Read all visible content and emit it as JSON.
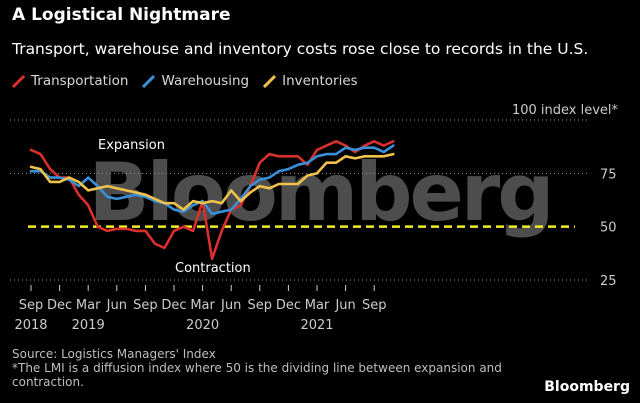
{
  "header": {
    "title": "A Logistical Nightmare",
    "subtitle": "Transport, warehouse and inventory costs rose close to records in the U.S."
  },
  "legend": [
    {
      "label": "Transportation",
      "color": "#d9302c"
    },
    {
      "label": "Warehousing",
      "color": "#3a8fd9"
    },
    {
      "label": "Inventories",
      "color": "#f0c24a"
    }
  ],
  "watermark": "Bloomberg",
  "footer": {
    "source": "Source: Logistics Managers' Index",
    "note": "*The LMI is a diffusion index where 50 is the dividing line between expansion and contraction.",
    "brand": "Bloomberg"
  },
  "chart_data": {
    "type": "line",
    "y_unit_label": "100 index level*",
    "ylim": [
      25,
      100
    ],
    "y_ticks": [
      25,
      50,
      75
    ],
    "reference_line": 50,
    "annotations": [
      "Expansion",
      "Contraction"
    ],
    "x_ticks": [
      {
        "label": "Sep",
        "year": "2018",
        "date": "2018-09"
      },
      {
        "label": "Dec",
        "year": "",
        "date": "2018-12"
      },
      {
        "label": "Mar",
        "year": "2019",
        "date": "2019-03"
      },
      {
        "label": "Jun",
        "year": "",
        "date": "2019-06"
      },
      {
        "label": "Sep",
        "year": "",
        "date": "2019-09"
      },
      {
        "label": "Dec",
        "year": "",
        "date": "2019-12"
      },
      {
        "label": "Mar",
        "year": "2020",
        "date": "2020-03"
      },
      {
        "label": "Jun",
        "year": "",
        "date": "2020-06"
      },
      {
        "label": "Sep",
        "year": "",
        "date": "2020-09"
      },
      {
        "label": "Dec",
        "year": "",
        "date": "2020-12"
      },
      {
        "label": "Mar",
        "year": "2021",
        "date": "2021-03"
      },
      {
        "label": "Jun",
        "year": "",
        "date": "2021-06"
      },
      {
        "label": "Sep",
        "year": "",
        "date": "2021-09"
      }
    ],
    "x": [
      "2018-09",
      "2018-10",
      "2018-11",
      "2018-12",
      "2019-01",
      "2019-02",
      "2019-03",
      "2019-04",
      "2019-05",
      "2019-06",
      "2019-07",
      "2019-08",
      "2019-09",
      "2019-10",
      "2019-11",
      "2019-12",
      "2020-01",
      "2020-02",
      "2020-03",
      "2020-04",
      "2020-05",
      "2020-06",
      "2020-07",
      "2020-08",
      "2020-09",
      "2020-10",
      "2020-11",
      "2020-12",
      "2021-01",
      "2021-02",
      "2021-03",
      "2021-04",
      "2021-05",
      "2021-06",
      "2021-07",
      "2021-08",
      "2021-09",
      "2021-10",
      "2021-11"
    ],
    "series": [
      {
        "name": "Transportation",
        "color": "#d9302c",
        "values": [
          86,
          84,
          77,
          73,
          73,
          65,
          60,
          50,
          48,
          49,
          49,
          48,
          48,
          42,
          40,
          48,
          50,
          48,
          62,
          35,
          48,
          58,
          60,
          69,
          80,
          84,
          83,
          83,
          83,
          79,
          86,
          88,
          90,
          88,
          85,
          88,
          90,
          88,
          90
        ]
      },
      {
        "name": "Warehousing",
        "color": "#3a8fd9",
        "values": [
          76,
          76,
          73,
          73,
          72,
          69,
          73,
          69,
          64,
          63,
          64,
          65,
          64,
          62,
          61,
          58,
          57,
          60,
          62,
          56,
          57,
          58,
          63,
          69,
          72,
          73,
          76,
          77,
          79,
          80,
          83,
          84,
          84,
          87,
          86,
          87,
          87,
          85,
          88
        ]
      },
      {
        "name": "Inventories",
        "color": "#f0c24a",
        "values": [
          78,
          77,
          71,
          71,
          73,
          71,
          67,
          68,
          69,
          68,
          67,
          66,
          65,
          63,
          61,
          61,
          58,
          62,
          61,
          62,
          61,
          67,
          62,
          66,
          69,
          68,
          70,
          70,
          70,
          74,
          75,
          80,
          80,
          83,
          82,
          83,
          83,
          83,
          84
        ]
      }
    ]
  }
}
